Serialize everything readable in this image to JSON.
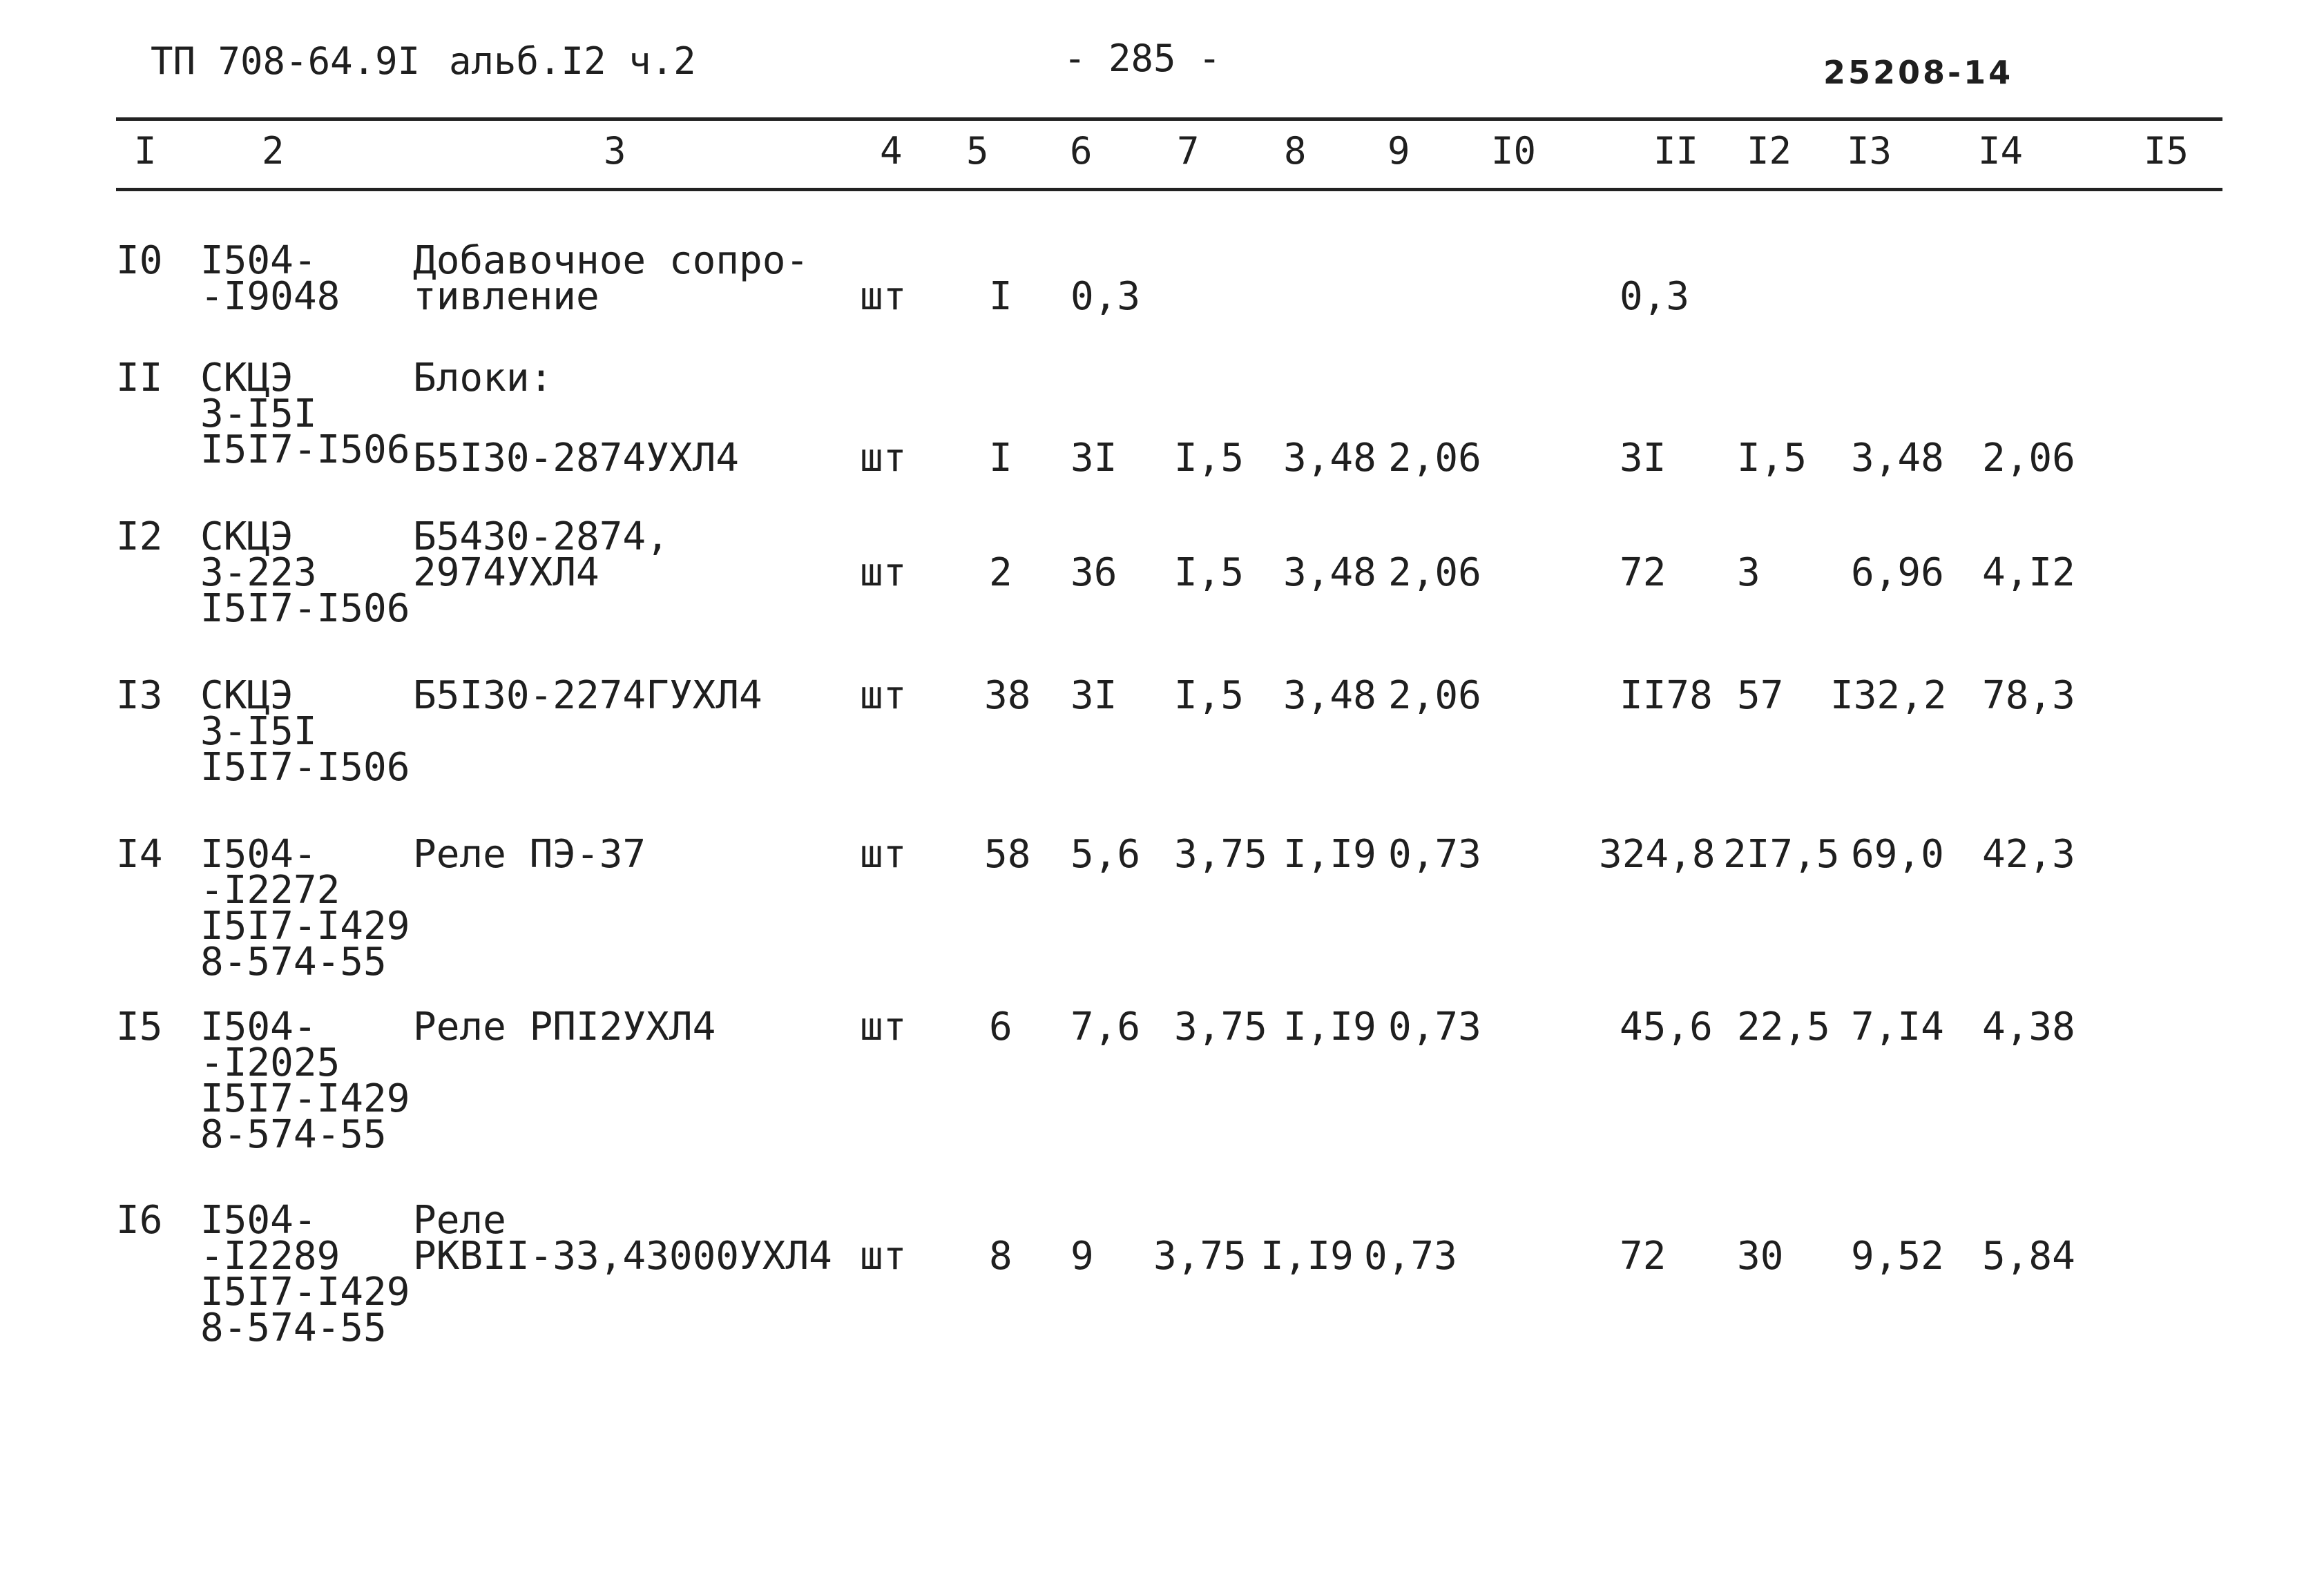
{
  "header": {
    "doc_code": "ТП 708-64.9I",
    "album": "альб.I2 ч.2",
    "page_number": "- 285 -",
    "sheet_code": "25208-14"
  },
  "columns": [
    "I",
    "2",
    "3",
    "4",
    "5",
    "6",
    "7",
    "8",
    "9",
    "I0",
    "II",
    "I2",
    "I3",
    "I4",
    "I5"
  ],
  "rows": [
    {
      "num": "I0",
      "code": [
        "I504-",
        "-I9048"
      ],
      "name": [
        "Добавочное сопро-",
        "тивление"
      ],
      "unit": "шт",
      "qty": "I",
      "c6": "0,3",
      "c7": "",
      "c8": "",
      "c9": "",
      "c11": "0,3",
      "c12": "",
      "c13": "",
      "c14": ""
    },
    {
      "num": "II",
      "code": [
        "СКЦЭ",
        "3-I5I",
        "I5I7-I506"
      ],
      "name": [
        "Блоки:",
        "",
        "Б5I30-2874УХЛ4"
      ],
      "unit": "шт",
      "qty": "I",
      "c6": "3I",
      "c7": "I,5",
      "c8": "3,48",
      "c9": "2,06",
      "c11": "3I",
      "c12": "I,5",
      "c13": "3,48",
      "c14": "2,06"
    },
    {
      "num": "I2",
      "code": [
        "СКЦЭ",
        "3-223",
        "I5I7-I506"
      ],
      "name": [
        "Б5430-2874,",
        "2974УХЛ4"
      ],
      "unit": "шт",
      "qty": "2",
      "c6": "36",
      "c7": "I,5",
      "c8": "3,48",
      "c9": "2,06",
      "c11": "72",
      "c12": "3",
      "c13": "6,96",
      "c14": "4,I2"
    },
    {
      "num": "I3",
      "code": [
        "СКЦЭ",
        "3-I5I",
        "I5I7-I506"
      ],
      "name": [
        "Б5I30-2274ГУХЛ4"
      ],
      "unit": "шт",
      "qty": "38",
      "c6": "3I",
      "c7": "I,5",
      "c8": "3,48",
      "c9": "2,06",
      "c11": "II78",
      "c12": "57",
      "c13": "I32,2",
      "c14": "78,3"
    },
    {
      "num": "I4",
      "code": [
        "I504-",
        "-I2272",
        "I5I7-I429",
        "8-574-55"
      ],
      "name": [
        "Реле ПЭ-37"
      ],
      "unit": "шт",
      "qty": "58",
      "c6": "5,6",
      "c7": "3,75",
      "c8": "I,I9",
      "c9": "0,73",
      "c11": "324,8",
      "c12": "2I7,5",
      "c13": "69,0",
      "c14": "42,3"
    },
    {
      "num": "I5",
      "code": [
        "I504-",
        "-I2025",
        "I5I7-I429",
        "8-574-55"
      ],
      "name": [
        "Реле РПI2УХЛ4"
      ],
      "unit": "шт",
      "qty": "6",
      "c6": "7,6",
      "c7": "3,75",
      "c8": "I,I9",
      "c9": "0,73",
      "c11": "45,6",
      "c12": "22,5",
      "c13": "7,I4",
      "c14": "4,38"
    },
    {
      "num": "I6",
      "code": [
        "I504-",
        "-I2289",
        "I5I7-I429",
        "8-574-55"
      ],
      "name": [
        "Реле",
        "РКВII-33,43000УХЛ4"
      ],
      "unit": "шт",
      "qty": "8",
      "c6": "9",
      "c7": "3,75",
      "c8": "I,I9",
      "c9": "0,73",
      "c11": "72",
      "c12": "30",
      "c13": "9,52",
      "c14": "5,84"
    }
  ]
}
